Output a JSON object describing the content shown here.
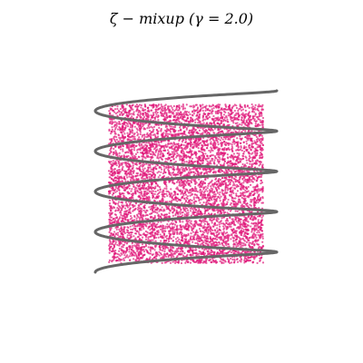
{
  "chart_data": {
    "type": "scatter",
    "title": "ζ − mixup (γ = 2.0)",
    "xlabel": "",
    "ylabel": "",
    "grid": false,
    "axes_visible": false,
    "xlim": [
      -1.25,
      1.25
    ],
    "ylim": [
      -1.5,
      1.5
    ],
    "series": [
      {
        "kind": "helix",
        "color": "#666666",
        "turns": 4.5,
        "x_amplitude": 1.0,
        "y_range": [
          -1.0,
          1.0
        ],
        "tilt": 0.35
      },
      {
        "kind": "points",
        "color": "#e0197b",
        "count": 7000,
        "x_range": [
          -0.85,
          0.85
        ],
        "y_range": [
          -0.9,
          0.85
        ]
      }
    ]
  }
}
